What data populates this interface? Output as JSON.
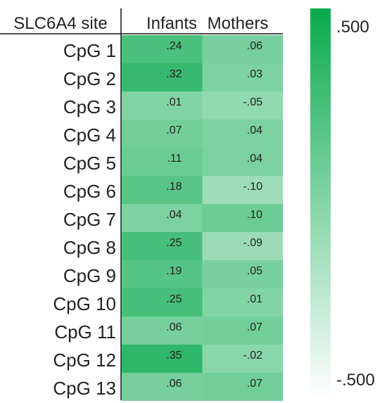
{
  "chart_data": {
    "type": "heatmap",
    "row_header": "SLC6A4 site",
    "columns": [
      "Infants",
      "Mothers"
    ],
    "rows": [
      "CpG 1",
      "CpG 2",
      "CpG 3",
      "CpG 4",
      "CpG 5",
      "CpG 6",
      "CpG 7",
      "CpG 8",
      "CpG 9",
      "CpG 10",
      "CpG 11",
      "CpG 12",
      "CpG 13"
    ],
    "values": [
      [
        0.24,
        0.06
      ],
      [
        0.32,
        0.03
      ],
      [
        0.01,
        -0.05
      ],
      [
        0.07,
        0.04
      ],
      [
        0.11,
        0.04
      ],
      [
        0.18,
        -0.1
      ],
      [
        0.04,
        0.1
      ],
      [
        0.25,
        -0.09
      ],
      [
        0.19,
        0.05
      ],
      [
        0.25,
        0.01
      ],
      [
        0.06,
        0.07
      ],
      [
        0.35,
        -0.02
      ],
      [
        0.06,
        0.07
      ]
    ],
    "cell_labels": [
      [
        ".24",
        ".06"
      ],
      [
        ".32",
        ".03"
      ],
      [
        ".01",
        "-.05"
      ],
      [
        ".07",
        ".04"
      ],
      [
        ".11",
        ".04"
      ],
      [
        ".18",
        "-.10"
      ],
      [
        ".04",
        ".10"
      ],
      [
        ".25",
        "-.09"
      ],
      [
        ".19",
        ".05"
      ],
      [
        ".25",
        ".01"
      ],
      [
        ".06",
        ".07"
      ],
      [
        ".35",
        "-.02"
      ],
      [
        ".06",
        ".07"
      ]
    ],
    "color_scale": {
      "min": -0.5,
      "max": 0.5,
      "min_label": "-.500",
      "max_label": ".500",
      "min_color": "#ffffff",
      "max_color": "#0aaa4e"
    }
  }
}
